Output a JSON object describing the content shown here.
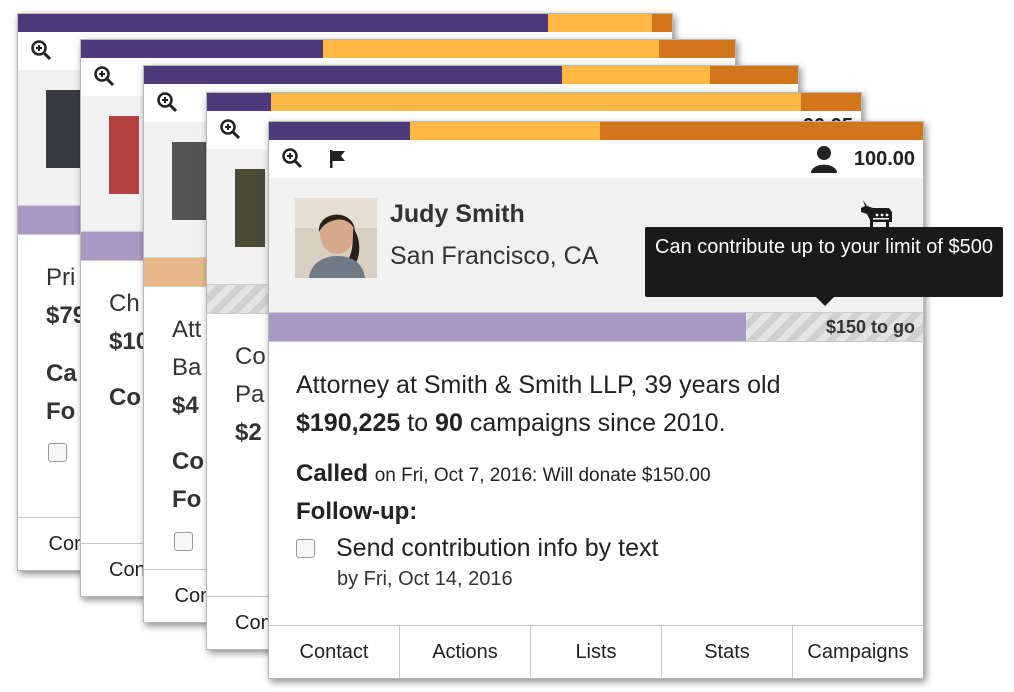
{
  "colors": {
    "purple": "#4e3a7b",
    "yellow": "#fdb943",
    "orange": "#d2751b",
    "progress": "#a799c4",
    "progress_alt": "#e8b888"
  },
  "back_cards": [
    {
      "lines": [
        "Pri",
        "$79",
        "Ca",
        "Fo"
      ],
      "tab": "Contact",
      "score_fragment": ""
    },
    {
      "lines": [
        "Ch",
        "$10",
        "Co"
      ],
      "tab": "Con",
      "score_fragment": ""
    },
    {
      "lines": [
        "Att",
        "Ba",
        "$4",
        "Co",
        "Fo"
      ],
      "tab": "Contact",
      "score_fragment": ""
    },
    {
      "lines": [
        "Co",
        "Pa",
        "$2"
      ],
      "tab": "Con",
      "score_fragment": "90.95"
    }
  ],
  "card": {
    "score": "100.00",
    "name": "Judy Smith",
    "location": "San Francisco, CA",
    "progress_fraction": 0.73,
    "to_go": "$150 to go",
    "tooltip": "Can contribute up to your limit of $500",
    "occupation": "Attorney at Smith & Smith LLP, 39 years old",
    "total_amount": "$190,225",
    "to_word": "to",
    "campaign_count": "90",
    "campaign_suffix": "campaigns since 2010.",
    "called_label": "Called",
    "called_detail": "on Fri, Oct 7, 2016: Will donate $150.00",
    "followup_label": "Follow-up:",
    "task_text": "Send contribution info by text",
    "task_due": "by Fri, Oct 14, 2016",
    "tabs": [
      "Contact",
      "Actions",
      "Lists",
      "Stats",
      "Campaigns"
    ]
  }
}
